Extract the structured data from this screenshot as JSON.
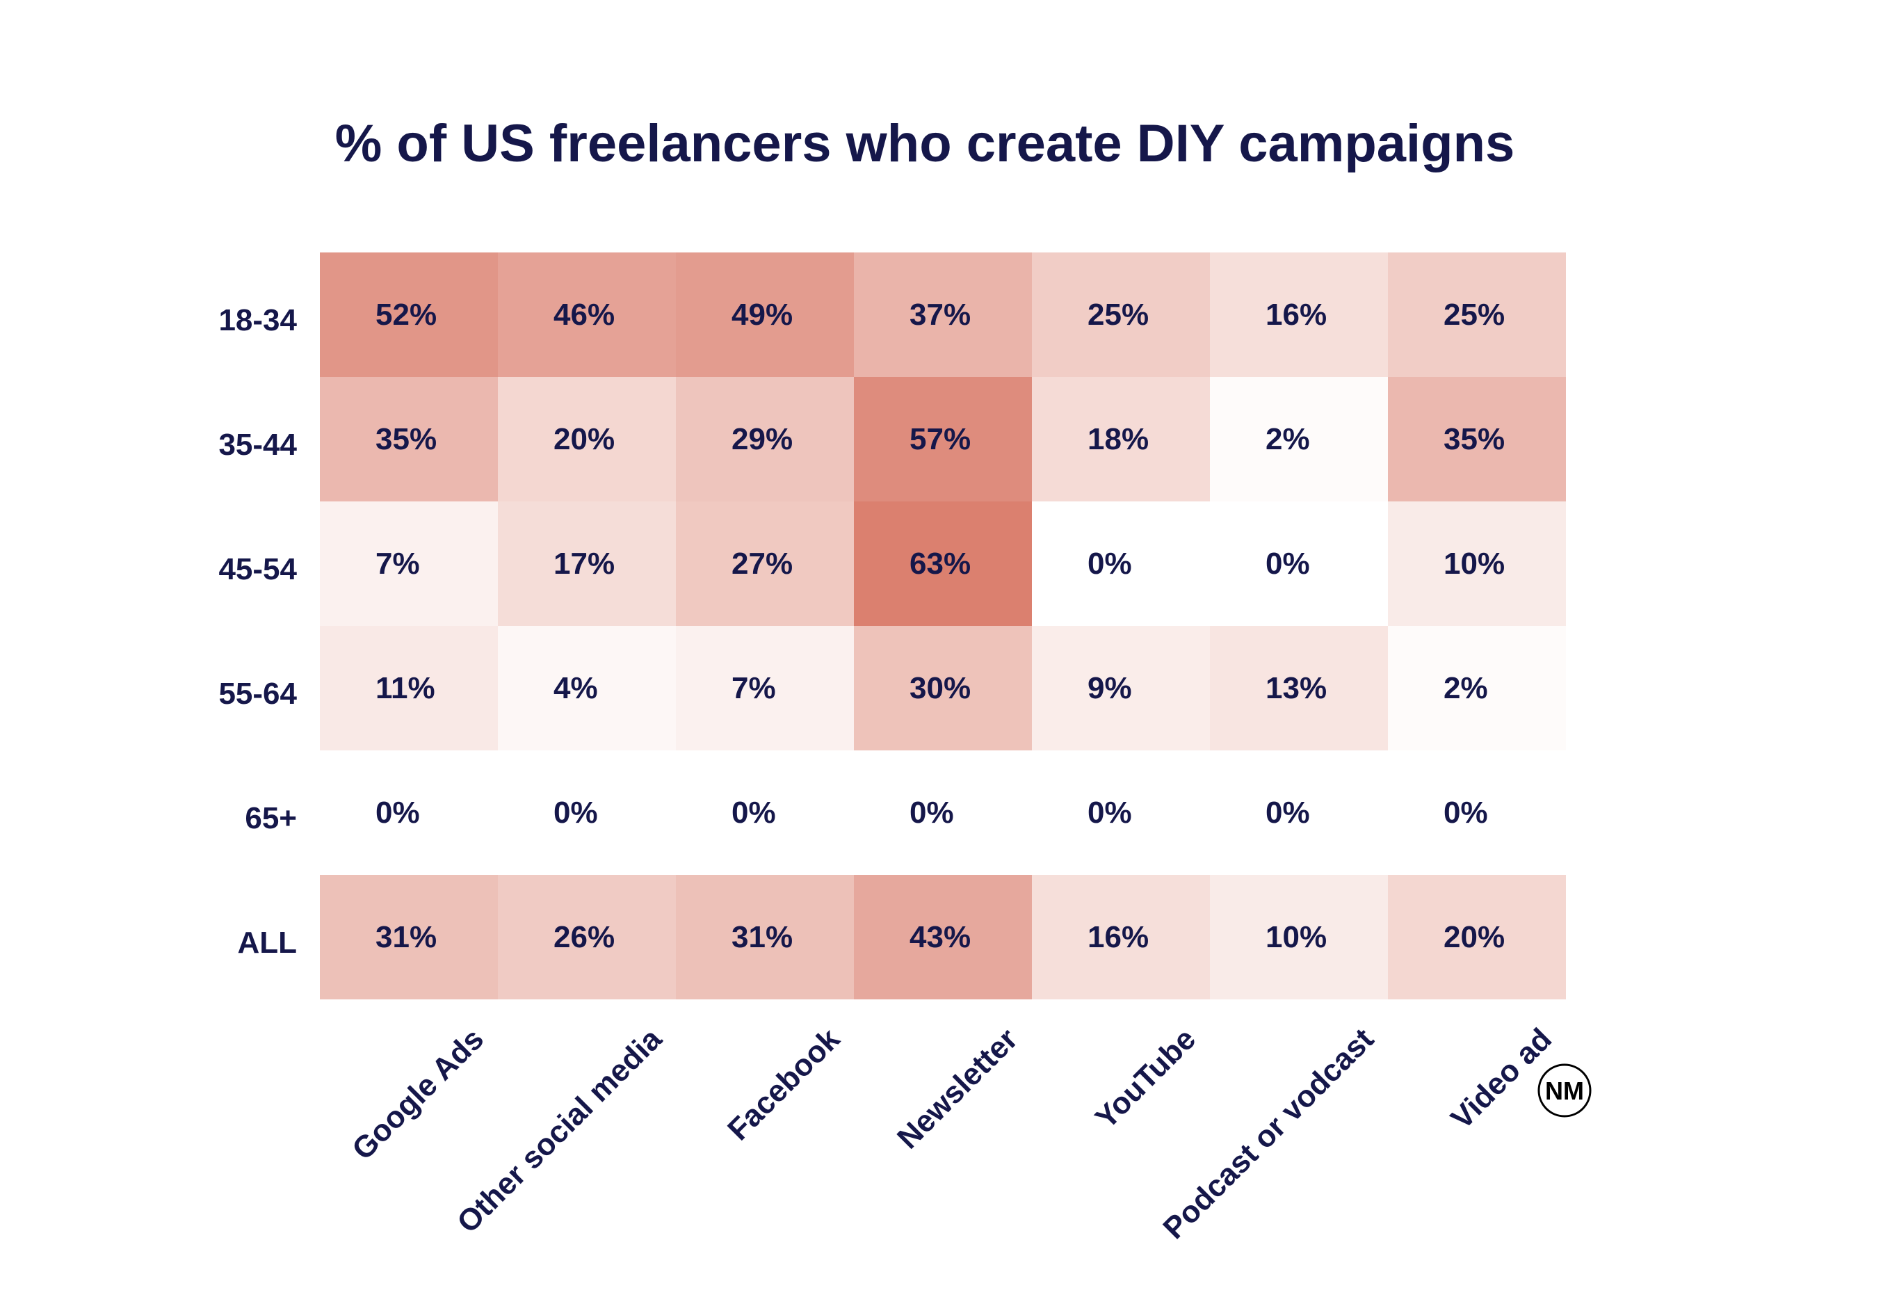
{
  "chart_data": {
    "type": "heatmap",
    "title": "% of US freelancers who create DIY campaigns",
    "rows": [
      "18-34",
      "35-44",
      "45-54",
      "55-64",
      "65+",
      "ALL"
    ],
    "columns": [
      "Google Ads",
      "Other social media",
      "Facebook",
      "Newsletter",
      "YouTube",
      "Podcast or vodcast",
      "Video ad"
    ],
    "values": [
      [
        52,
        46,
        49,
        37,
        25,
        16,
        25
      ],
      [
        35,
        20,
        29,
        57,
        18,
        2,
        35
      ],
      [
        7,
        17,
        27,
        63,
        0,
        0,
        10
      ],
      [
        11,
        4,
        7,
        30,
        9,
        13,
        2
      ],
      [
        0,
        0,
        0,
        0,
        0,
        0,
        0
      ],
      [
        31,
        26,
        31,
        43,
        16,
        10,
        20
      ]
    ],
    "value_suffix": "%",
    "color_scale": {
      "low": "#ffffff",
      "high": "#db806f"
    },
    "text_color": "#15174a"
  },
  "logo": {
    "text": "NM"
  }
}
